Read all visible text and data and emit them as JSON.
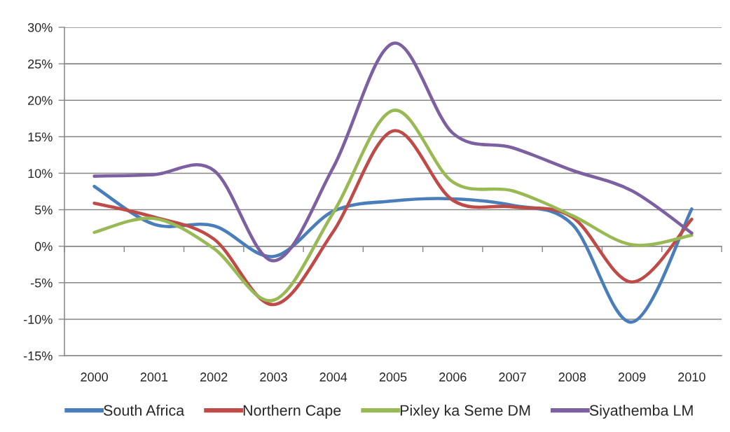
{
  "chart_data": {
    "type": "line",
    "categories": [
      "2000",
      "2001",
      "2002",
      "2003",
      "2004",
      "2005",
      "2006",
      "2007",
      "2008",
      "2009",
      "2010"
    ],
    "series": [
      {
        "name": "South Africa",
        "color": "#4a7ebb",
        "values": [
          8.2,
          3.0,
          2.8,
          -1.4,
          4.8,
          6.2,
          6.5,
          5.6,
          3.0,
          -10.4,
          5.1
        ]
      },
      {
        "name": "Northern Cape",
        "color": "#be4b48",
        "values": [
          5.9,
          4.0,
          1.0,
          -8.0,
          2.0,
          15.8,
          6.3,
          5.4,
          4.0,
          -4.9,
          3.7
        ]
      },
      {
        "name": "Pixley ka Seme DM",
        "color": "#98b954",
        "values": [
          1.9,
          3.8,
          -0.3,
          -7.4,
          4.6,
          18.6,
          8.8,
          7.6,
          4.2,
          0.2,
          1.5
        ]
      },
      {
        "name": "Siyathemba LM",
        "color": "#7d60a0",
        "values": [
          9.6,
          9.8,
          10.4,
          -2.0,
          10.8,
          27.8,
          15.5,
          13.5,
          10.4,
          7.6,
          1.8
        ]
      }
    ],
    "ylim": [
      -15,
      30
    ],
    "yticks": [
      {
        "value": -15,
        "label": "-15%"
      },
      {
        "value": -10,
        "label": "-10%"
      },
      {
        "value": -5,
        "label": "-5%"
      },
      {
        "value": 0,
        "label": "0%"
      },
      {
        "value": 5,
        "label": "5%"
      },
      {
        "value": 10,
        "label": "10%"
      },
      {
        "value": 15,
        "label": "15%"
      },
      {
        "value": 20,
        "label": "20%"
      },
      {
        "value": 25,
        "label": "25%"
      },
      {
        "value": 30,
        "label": "30%"
      }
    ],
    "grid": "y",
    "legend": "bottom",
    "line_style": "solid"
  }
}
